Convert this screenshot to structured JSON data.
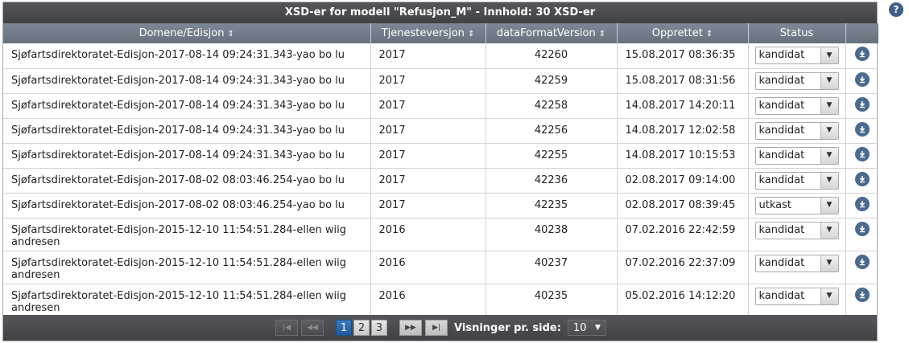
{
  "caption": "XSD-er for modell \"Refusjon_M\" - Innhold: 30 XSD-er",
  "columns": {
    "domain": "Domene/Edisjon",
    "service_version": "Tjenesteversjon",
    "data_format_version": "dataFormatVersion",
    "created": "Opprettet",
    "status": "Status"
  },
  "rows": [
    {
      "domain": "Sjøfartsdirektoratet-Edisjon-2017-08-14 09:24:31.343-yao bo lu",
      "service_version": "2017",
      "data_format_version": "42260",
      "created": "15.08.2017 08:36:35",
      "status": "kandidat"
    },
    {
      "domain": "Sjøfartsdirektoratet-Edisjon-2017-08-14 09:24:31.343-yao bo lu",
      "service_version": "2017",
      "data_format_version": "42259",
      "created": "15.08.2017 08:31:56",
      "status": "kandidat"
    },
    {
      "domain": "Sjøfartsdirektoratet-Edisjon-2017-08-14 09:24:31.343-yao bo lu",
      "service_version": "2017",
      "data_format_version": "42258",
      "created": "14.08.2017 14:20:11",
      "status": "kandidat"
    },
    {
      "domain": "Sjøfartsdirektoratet-Edisjon-2017-08-14 09:24:31.343-yao bo lu",
      "service_version": "2017",
      "data_format_version": "42256",
      "created": "14.08.2017 12:02:58",
      "status": "kandidat"
    },
    {
      "domain": "Sjøfartsdirektoratet-Edisjon-2017-08-14 09:24:31.343-yao bo lu",
      "service_version": "2017",
      "data_format_version": "42255",
      "created": "14.08.2017 10:15:53",
      "status": "kandidat"
    },
    {
      "domain": "Sjøfartsdirektoratet-Edisjon-2017-08-02 08:03:46.254-yao bo lu",
      "service_version": "2017",
      "data_format_version": "42236",
      "created": "02.08.2017 09:14:00",
      "status": "kandidat"
    },
    {
      "domain": "Sjøfartsdirektoratet-Edisjon-2017-08-02 08:03:46.254-yao bo lu",
      "service_version": "2017",
      "data_format_version": "42235",
      "created": "02.08.2017 08:39:45",
      "status": "utkast"
    },
    {
      "domain": "Sjøfartsdirektoratet-Edisjon-2015-12-10 11:54:51.284-ellen wiig andresen",
      "service_version": "2016",
      "data_format_version": "40238",
      "created": "07.02.2016 22:42:59",
      "status": "kandidat"
    },
    {
      "domain": "Sjøfartsdirektoratet-Edisjon-2015-12-10 11:54:51.284-ellen wiig andresen",
      "service_version": "2016",
      "data_format_version": "40237",
      "created": "07.02.2016 22:37:09",
      "status": "kandidat"
    },
    {
      "domain": "Sjøfartsdirektoratet-Edisjon-2015-12-10 11:54:51.284-ellen wiig andresen",
      "service_version": "2016",
      "data_format_version": "40235",
      "created": "05.02.2016 14:12:20",
      "status": "kandidat"
    }
  ],
  "pager": {
    "pages": [
      "1",
      "2",
      "3"
    ],
    "current_page": "1",
    "rows_per_page_label": "Visninger pr. side:",
    "rows_per_page": "10"
  },
  "help_label": "?",
  "icons": {
    "sort": "sort-icon",
    "download": "download-icon",
    "help": "help-icon",
    "first": "first-page-icon",
    "prev": "prev-page-icon",
    "next": "next-page-icon",
    "last": "last-page-icon"
  },
  "colors": {
    "caption_bg": "#4a4c4f",
    "header_bg": "#717d89",
    "current_page": "#2e6bb3",
    "download_icon": "#4a6a8f"
  }
}
